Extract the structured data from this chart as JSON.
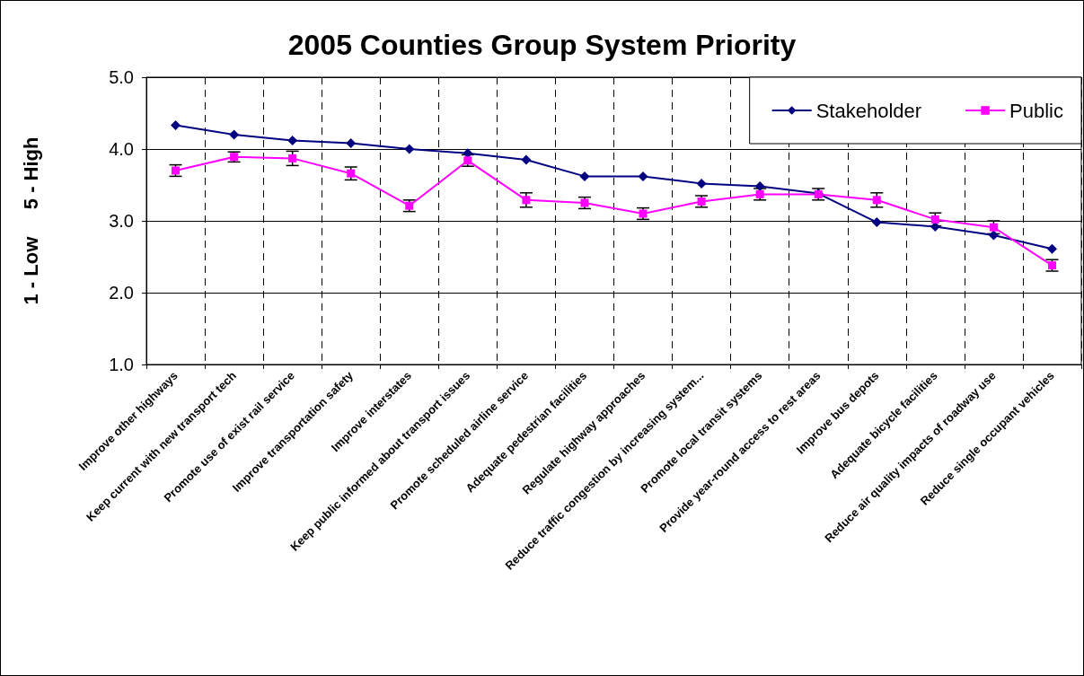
{
  "chart_data": {
    "type": "line",
    "title": "2005 Counties Group System Priority",
    "ylabel": "1 - Low     5 - High",
    "categories": [
      "Improve other highways",
      "Keep current with new transport tech",
      "Promote use of exist rail service",
      "Improve transportation safety",
      "Improve interstates",
      "Keep public informed about transport issues",
      "Promote scheduled airline service",
      "Adequate pedestrian facilities",
      "Regulate highway approaches",
      "Reduce traffic congestion by increasing system...",
      "Promote local transit systems",
      "Provide year-round access to rest areas",
      "Improve bus depots",
      "Adequate bicycle facilities",
      "Reduce air quality impacts of roadway use",
      "Reduce single occupant vehicles"
    ],
    "series": [
      {
        "name": "Stakeholder",
        "color": "#000080",
        "marker": "diamond",
        "values": [
          4.33,
          4.2,
          4.12,
          4.08,
          4.0,
          3.94,
          3.85,
          3.62,
          3.62,
          3.52,
          3.48,
          3.38,
          2.98,
          2.92,
          2.8,
          2.61
        ]
      },
      {
        "name": "Public",
        "color": "#ff00ff",
        "marker": "square",
        "values": [
          3.7,
          3.89,
          3.87,
          3.66,
          3.21,
          3.84,
          3.29,
          3.25,
          3.1,
          3.27,
          3.37,
          3.37,
          3.29,
          3.02,
          2.91,
          2.38
        ],
        "errors": [
          0.08,
          0.07,
          0.1,
          0.09,
          0.08,
          0.08,
          0.1,
          0.08,
          0.08,
          0.08,
          0.08,
          0.08,
          0.1,
          0.09,
          0.09,
          0.08
        ]
      }
    ],
    "ylim": [
      1,
      5
    ],
    "yticks": [
      {
        "value": 1,
        "label": "1.0"
      },
      {
        "value": 2,
        "label": "2.0"
      },
      {
        "value": 3,
        "label": "3.0"
      },
      {
        "value": 4,
        "label": "4.0"
      },
      {
        "value": 5,
        "label": "5.0"
      }
    ],
    "grid": true,
    "legend": "top right",
    "line_style": "solid"
  }
}
